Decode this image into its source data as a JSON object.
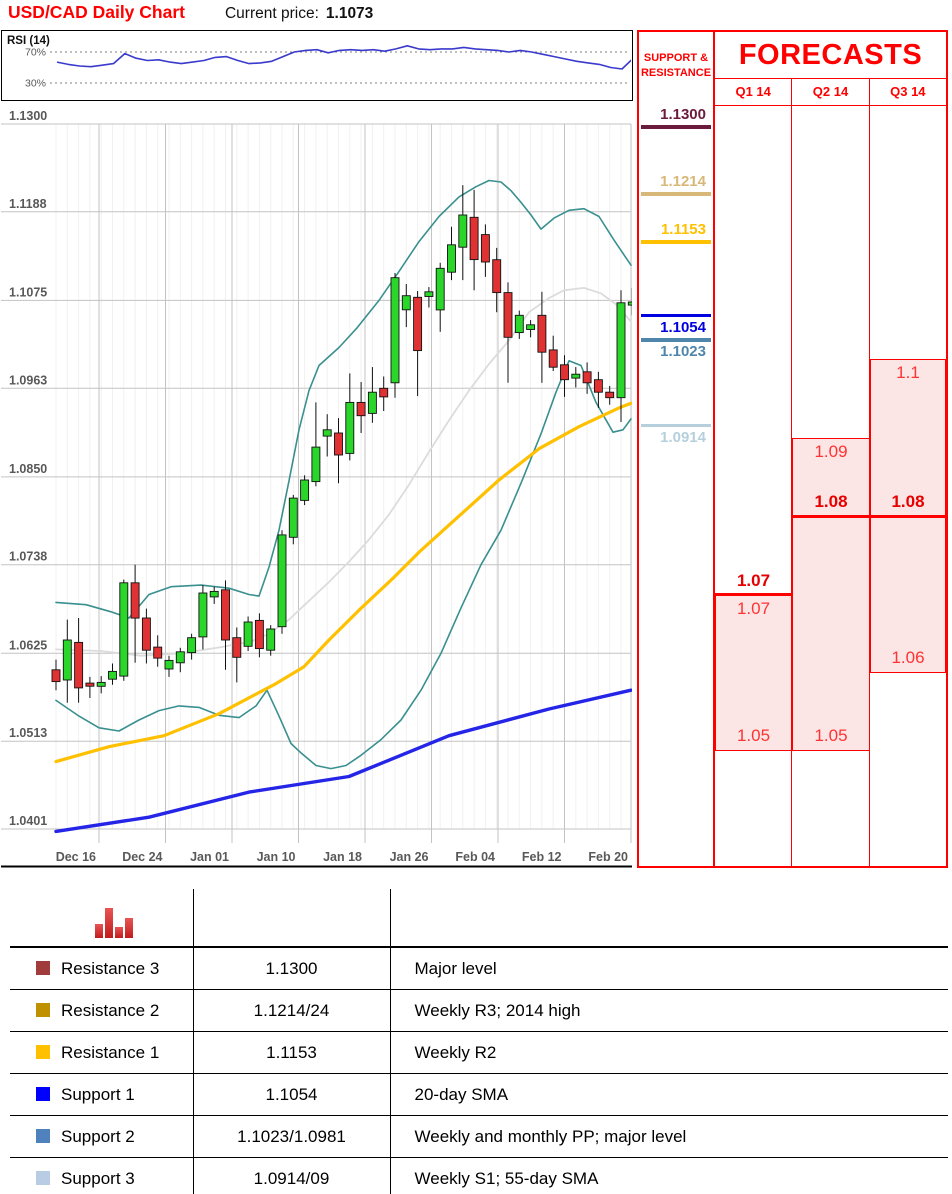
{
  "header": {
    "title": "USD/CAD Daily Chart",
    "current_price_label": "Current price:",
    "current_price": "1.1073"
  },
  "colors": {
    "accent_red": "#FF0000",
    "candle_up": "#2BD62B",
    "candle_down": "#E03232",
    "bands_teal": "#3A8F8F",
    "sma20_gray": "#DCDCDC",
    "sma55_yellow": "#FFC000",
    "sma200_blue": "#2525E8",
    "rsi_blue": "#3A3ACC",
    "axis_text": "#595959",
    "forecast_fill": "#FCE5E5",
    "forecast_text": "#FF3333",
    "forecast_text_bold": "#E60000"
  },
  "chart_data": [
    {
      "type": "candlestick",
      "title": "USD/CAD Daily Chart",
      "ylabel": "Price",
      "ylim": [
        1.0333,
        1.1318
      ],
      "grid": true,
      "y_ticks": [
        1.13,
        1.1188,
        1.1075,
        1.0963,
        1.085,
        1.0738,
        1.0625,
        1.0513,
        1.0401
      ],
      "x_ticks": [
        "Dec 16",
        "Dec 24",
        "Jan 01",
        "Jan 10",
        "Jan 18",
        "Jan 26",
        "Feb 04",
        "Feb 12",
        "Feb 20"
      ],
      "candles": [
        [
          1.0604,
          1.0617,
          1.0578,
          1.0589
        ],
        [
          1.0591,
          1.0668,
          1.0562,
          1.0642
        ],
        [
          1.0639,
          1.067,
          1.0562,
          1.0581
        ],
        [
          1.0587,
          1.0595,
          1.0568,
          1.0583
        ],
        [
          1.0583,
          1.0596,
          1.0574,
          1.0588
        ],
        [
          1.0592,
          1.0612,
          1.0585,
          1.0602
        ],
        [
          1.0596,
          1.0719,
          1.059,
          1.0715
        ],
        [
          1.0715,
          1.0738,
          1.0613,
          1.067
        ],
        [
          1.067,
          1.0682,
          1.0612,
          1.0629
        ],
        [
          1.0633,
          1.0648,
          1.0608,
          1.0619
        ],
        [
          1.0605,
          1.0622,
          1.0595,
          1.0616
        ],
        [
          1.0613,
          1.0632,
          1.0601,
          1.0627
        ],
        [
          1.0626,
          1.065,
          1.0617,
          1.0645
        ],
        [
          1.0646,
          1.0712,
          1.063,
          1.0702
        ],
        [
          1.0697,
          1.071,
          1.0688,
          1.0704
        ],
        [
          1.0706,
          1.0718,
          1.0604,
          1.0642
        ],
        [
          1.0645,
          1.0658,
          1.0588,
          1.062
        ],
        [
          1.0634,
          1.0672,
          1.0628,
          1.0665
        ],
        [
          1.0667,
          1.0676,
          1.062,
          1.0631
        ],
        [
          1.0629,
          1.0661,
          1.0622,
          1.0656
        ],
        [
          1.0659,
          1.0782,
          1.065,
          1.0776
        ],
        [
          1.0773,
          1.0827,
          1.0764,
          1.0823
        ],
        [
          1.082,
          1.0852,
          1.0814,
          1.0846
        ],
        [
          1.0844,
          1.0945,
          1.0838,
          1.0888
        ],
        [
          1.0902,
          1.093,
          1.0876,
          1.091
        ],
        [
          1.0906,
          1.0925,
          1.0842,
          1.0878
        ],
        [
          1.088,
          1.0982,
          1.0871,
          1.0945
        ],
        [
          1.0945,
          1.0971,
          1.0906,
          1.0928
        ],
        [
          1.0931,
          1.099,
          1.0919,
          1.0958
        ],
        [
          1.0963,
          1.0978,
          1.0934,
          1.0952
        ],
        [
          1.097,
          1.111,
          1.0951,
          1.1104
        ],
        [
          1.1063,
          1.1096,
          1.1041,
          1.1081
        ],
        [
          1.1079,
          1.1087,
          1.0953,
          1.1011
        ],
        [
          1.108,
          1.1092,
          1.1066,
          1.1086
        ],
        [
          1.1063,
          1.1123,
          1.1035,
          1.1116
        ],
        [
          1.1111,
          1.1169,
          1.1101,
          1.1146
        ],
        [
          1.1143,
          1.1222,
          1.1101,
          1.1184
        ],
        [
          1.1181,
          1.1216,
          1.1088,
          1.1127
        ],
        [
          1.1159,
          1.1172,
          1.1105,
          1.1124
        ],
        [
          1.1127,
          1.1142,
          1.106,
          1.1085
        ],
        [
          1.1085,
          1.1098,
          1.097,
          1.1028
        ],
        [
          1.1034,
          1.1062,
          1.1026,
          1.1056
        ],
        [
          1.1038,
          1.105,
          1.1028,
          1.1044
        ],
        [
          1.1056,
          1.1086,
          1.097,
          1.1009
        ],
        [
          1.1012,
          1.103,
          1.0985,
          1.099
        ],
        [
          1.0993,
          1.1005,
          1.0952,
          1.0974
        ],
        [
          1.0976,
          1.099,
          1.0964,
          1.0981
        ],
        [
          1.0984,
          1.0996,
          1.0956,
          1.097
        ],
        [
          1.0974,
          1.0984,
          1.0938,
          1.0958
        ],
        [
          1.0958,
          1.0966,
          1.0942,
          1.0951
        ],
        [
          1.0951,
          1.1088,
          1.092,
          1.1072
        ],
        [
          1.1069,
          1.1091,
          1.1056,
          1.1073
        ]
      ],
      "overlays": [
        {
          "name": "bollinger-upper-line",
          "color": "#3A8F8F",
          "width": 1.6,
          "points": [
            [
              55,
              1.069
            ],
            [
              85,
              1.0687
            ],
            [
              110,
              1.0678
            ],
            [
              128,
              1.067
            ],
            [
              148,
              1.07
            ],
            [
              170,
              1.071
            ],
            [
              200,
              1.0712
            ],
            [
              228,
              1.0708
            ],
            [
              248,
              1.07
            ],
            [
              258,
              1.0698
            ],
            [
              268,
              1.0735
            ],
            [
              278,
              1.0782
            ],
            [
              288,
              1.0845
            ],
            [
              298,
              1.091
            ],
            [
              308,
              1.096
            ],
            [
              318,
              1.0992
            ],
            [
              338,
              1.1015
            ],
            [
              356,
              1.104
            ],
            [
              378,
              1.1075
            ],
            [
              398,
              1.1112
            ],
            [
              418,
              1.115
            ],
            [
              438,
              1.1182
            ],
            [
              458,
              1.1207
            ],
            [
              475,
              1.122
            ],
            [
              488,
              1.1228
            ],
            [
              500,
              1.1226
            ],
            [
              510,
              1.1215
            ],
            [
              520,
              1.12
            ],
            [
              530,
              1.1184
            ],
            [
              540,
              1.1166
            ],
            [
              553,
              1.118
            ],
            [
              568,
              1.119
            ],
            [
              583,
              1.1192
            ],
            [
              598,
              1.1182
            ],
            [
              613,
              1.1152
            ],
            [
              630,
              1.112
            ]
          ]
        },
        {
          "name": "bollinger-lower-line",
          "color": "#3A8F8F",
          "width": 1.6,
          "points": [
            [
              55,
              1.0565
            ],
            [
              78,
              1.0545
            ],
            [
              98,
              1.053
            ],
            [
              118,
              1.0526
            ],
            [
              138,
              1.054
            ],
            [
              158,
              1.0552
            ],
            [
              178,
              1.0558
            ],
            [
              198,
              1.0556
            ],
            [
              218,
              1.0546
            ],
            [
              238,
              1.0543
            ],
            [
              255,
              1.0558
            ],
            [
              266,
              1.0578
            ],
            [
              278,
              1.0545
            ],
            [
              290,
              1.051
            ],
            [
              300,
              1.0498
            ],
            [
              315,
              1.0482
            ],
            [
              330,
              1.0478
            ],
            [
              345,
              1.0482
            ],
            [
              360,
              1.0495
            ],
            [
              380,
              1.0515
            ],
            [
              400,
              1.054
            ],
            [
              420,
              1.0578
            ],
            [
              440,
              1.0625
            ],
            [
              460,
              1.0683
            ],
            [
              480,
              1.0738
            ],
            [
              500,
              1.0782
            ],
            [
              520,
              1.0842
            ],
            [
              540,
              1.0905
            ],
            [
              555,
              1.0958
            ],
            [
              568,
              1.0998
            ],
            [
              580,
              1.0992
            ],
            [
              595,
              1.0945
            ],
            [
              612,
              1.0907
            ],
            [
              622,
              1.091
            ],
            [
              630,
              1.0924
            ]
          ]
        },
        {
          "name": "sma-20-line",
          "color": "#DCDCDC",
          "width": 1.8,
          "points": [
            [
              55,
              1.063
            ],
            [
              100,
              1.0628
            ],
            [
              140,
              1.0622
            ],
            [
              180,
              1.0625
            ],
            [
              220,
              1.0633
            ],
            [
              250,
              1.064
            ],
            [
              268,
              1.065
            ],
            [
              288,
              1.0668
            ],
            [
              308,
              1.0692
            ],
            [
              328,
              1.0716
            ],
            [
              348,
              1.0742
            ],
            [
              368,
              1.077
            ],
            [
              388,
              1.0802
            ],
            [
              408,
              1.084
            ],
            [
              428,
              1.0882
            ],
            [
              448,
              1.0922
            ],
            [
              468,
              1.096
            ],
            [
              488,
              1.0994
            ],
            [
              508,
              1.1024
            ],
            [
              528,
              1.106
            ],
            [
              548,
              1.1078
            ],
            [
              563,
              1.1088
            ],
            [
              583,
              1.1091
            ],
            [
              600,
              1.1084
            ],
            [
              615,
              1.107
            ],
            [
              630,
              1.1048
            ]
          ]
        },
        {
          "name": "sma-55-line",
          "color": "#FFC000",
          "width": 3.2,
          "points": [
            [
              55,
              1.0487
            ],
            [
              108,
              1.0506
            ],
            [
              163,
              1.052
            ],
            [
              218,
              1.0548
            ],
            [
              273,
              1.0585
            ],
            [
              303,
              1.0608
            ],
            [
              328,
              1.0642
            ],
            [
              358,
              1.068
            ],
            [
              393,
              1.0722
            ],
            [
              418,
              1.0754
            ],
            [
              458,
              1.08
            ],
            [
              498,
              1.0846
            ],
            [
              538,
              1.0886
            ],
            [
              578,
              1.0914
            ],
            [
              618,
              1.0938
            ],
            [
              630,
              1.0944
            ]
          ]
        },
        {
          "name": "sma-200-line",
          "color": "#2525E8",
          "width": 3.4,
          "points": [
            [
              55,
              1.0398
            ],
            [
              148,
              1.0416
            ],
            [
              248,
              1.0448
            ],
            [
              348,
              1.0468
            ],
            [
              448,
              1.052
            ],
            [
              548,
              1.0554
            ],
            [
              630,
              1.0578
            ]
          ]
        }
      ]
    },
    {
      "type": "line",
      "name": "RSI (14)",
      "label": "RSI (14)",
      "ylim": [
        0,
        100
      ],
      "ref_levels": [
        70,
        30
      ],
      "ref_labels": [
        "70%",
        "30%"
      ],
      "values": [
        57,
        54,
        52,
        51,
        53,
        55,
        68,
        62,
        59,
        60,
        57,
        55,
        57,
        59,
        63,
        64,
        59,
        55,
        56,
        58,
        64,
        70,
        72,
        73,
        69,
        72,
        73,
        72,
        73,
        71,
        74,
        78,
        74,
        73,
        74,
        74,
        76,
        74,
        73,
        72,
        70,
        72,
        70,
        67,
        64,
        61,
        58,
        56,
        54,
        50,
        48,
        62
      ]
    }
  ],
  "sr_panel": {
    "title_line1": "SUPPORT &",
    "title_line2": "RESISTANCE",
    "levels": [
      {
        "label": "1.1300",
        "price": 1.13,
        "color": "#6B1B3C",
        "side": "resistance"
      },
      {
        "label": "1.1214",
        "price": 1.1214,
        "color": "#D8B879",
        "side": "resistance"
      },
      {
        "label": "1.1153",
        "price": 1.1153,
        "color": "#FFC000",
        "side": "resistance"
      },
      {
        "label": "1.1054",
        "price": 1.1054,
        "color": "#0000E0",
        "side": "support"
      },
      {
        "label": "1.1023",
        "price": 1.1023,
        "color": "#4E86AC",
        "side": "support"
      },
      {
        "label": "1.0914",
        "price": 1.0914,
        "color": "#B5D0DC",
        "side": "support"
      }
    ]
  },
  "forecasts": {
    "title": "FORECASTS",
    "columns": [
      {
        "label": "Q1 14",
        "range_high": 1.07,
        "range_high_label": "1.07",
        "range_low": 1.05,
        "range_low_label": "1.05",
        "target": 1.07,
        "target_label": "1.07"
      },
      {
        "label": "Q2 14",
        "range_high": 1.09,
        "range_high_label": "1.09",
        "range_low": 1.05,
        "range_low_label": "1.05",
        "target": 1.08,
        "target_label": "1.08"
      },
      {
        "label": "Q3 14",
        "range_high": 1.1,
        "range_high_label": "1.1",
        "range_low": 1.06,
        "range_low_label": "1.06",
        "target": 1.08,
        "target_label": "1.08"
      }
    ]
  },
  "table": {
    "icon": "bar-chart-icon",
    "rows": [
      {
        "swatch": "#A03C3C",
        "label": "Resistance 3",
        "value": "1.1300",
        "note": "Major level"
      },
      {
        "swatch": "#BF9000",
        "label": "Resistance 2",
        "value": "1.1214/24",
        "note": "Weekly R3; 2014 high"
      },
      {
        "swatch": "#FFC000",
        "label": "Resistance 1",
        "value": "1.1153",
        "note": "Weekly R2"
      },
      {
        "swatch": "#0000FF",
        "label": "Support 1",
        "value": "1.1054",
        "note": "20-day SMA"
      },
      {
        "swatch": "#4F81BD",
        "label": "Support 2",
        "value": "1.1023/1.0981",
        "note": "Weekly and monthly PP; major level"
      },
      {
        "swatch": "#B8CCE4",
        "label": "Support 3",
        "value": "1.0914/09",
        "note": "Weekly S1; 55-day SMA"
      }
    ]
  }
}
